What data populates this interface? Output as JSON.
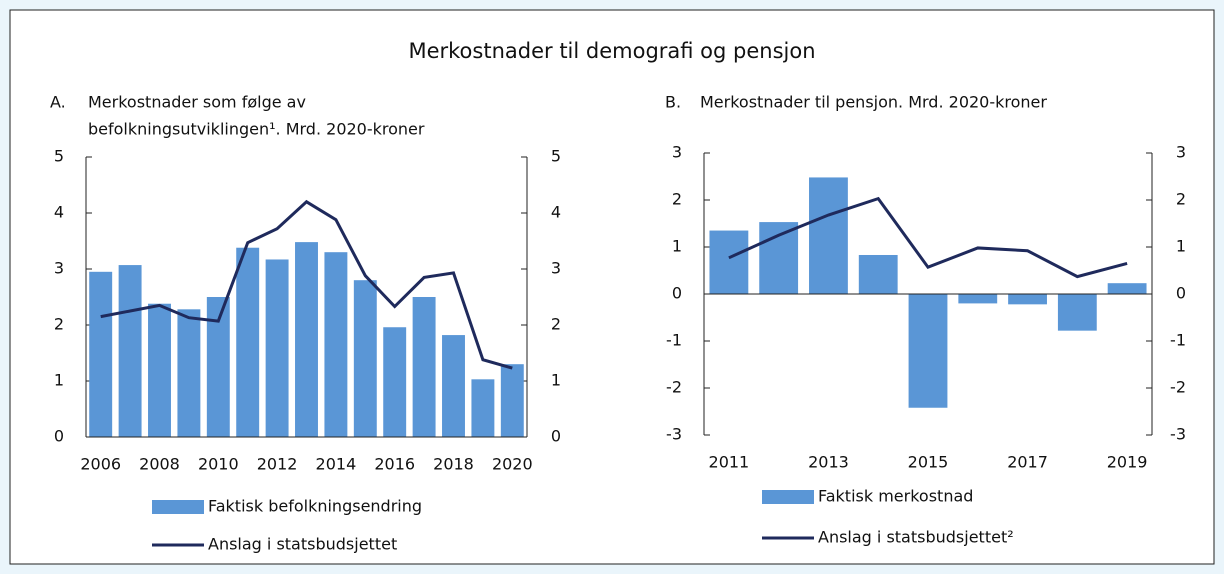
{
  "title": "Merkostnader til demografi og pensjon",
  "chart_data": [
    {
      "type": "bar",
      "label": "A.",
      "title": [
        "Merkostnader som følge av",
        "befolkningsutviklingen¹. Mrd. 2020-kroner"
      ],
      "categories": [
        "2006",
        null,
        "2008",
        null,
        "2010",
        null,
        "2012",
        null,
        "2014",
        null,
        "2016",
        null,
        "2018",
        null,
        "2020"
      ],
      "series": [
        {
          "name": "Faktisk befolkningsendring",
          "kind": "bar",
          "color": "#5a96d6",
          "values": [
            2.95,
            3.07,
            2.38,
            2.28,
            2.5,
            3.38,
            3.17,
            3.48,
            3.3,
            2.8,
            1.96,
            2.5,
            1.82,
            1.03,
            1.3
          ]
        },
        {
          "name": "Anslag i statsbudsjettet",
          "kind": "line",
          "color": "#1f2a5c",
          "values": [
            2.15,
            2.25,
            2.35,
            2.13,
            2.07,
            3.47,
            3.72,
            4.2,
            3.88,
            2.88,
            2.33,
            2.85,
            2.93,
            1.38,
            1.23
          ]
        }
      ],
      "ylim": [
        0,
        5
      ],
      "yticks": [
        0,
        1,
        2,
        3,
        4,
        5
      ],
      "y2lim": [
        0,
        5
      ],
      "y2ticks": [
        0,
        1,
        2,
        3,
        4,
        5
      ]
    },
    {
      "type": "bar",
      "label": "B.",
      "title": [
        "Merkostnader til pensjon. Mrd. 2020-kroner"
      ],
      "categories": [
        "2011",
        null,
        "2013",
        null,
        "2015",
        null,
        "2017",
        null,
        "2019"
      ],
      "series": [
        {
          "name": "Faktisk merkostnad",
          "kind": "bar",
          "color": "#5a96d6",
          "values": [
            1.35,
            1.53,
            2.48,
            0.83,
            -2.42,
            -0.2,
            -0.22,
            -0.78,
            0.23
          ]
        },
        {
          "name": "Anslag i statsbudsjettet²",
          "kind": "line",
          "color": "#1f2a5c",
          "values": [
            0.77,
            1.25,
            1.68,
            2.03,
            0.57,
            0.98,
            0.92,
            0.37,
            0.65
          ]
        }
      ],
      "ylim": [
        -3,
        3
      ],
      "yticks": [
        -3,
        -2,
        -1,
        0,
        1,
        2,
        3
      ],
      "y2lim": [
        -3,
        3
      ],
      "y2ticks": [
        -3,
        -2,
        -1,
        0,
        1,
        2,
        3
      ]
    }
  ]
}
